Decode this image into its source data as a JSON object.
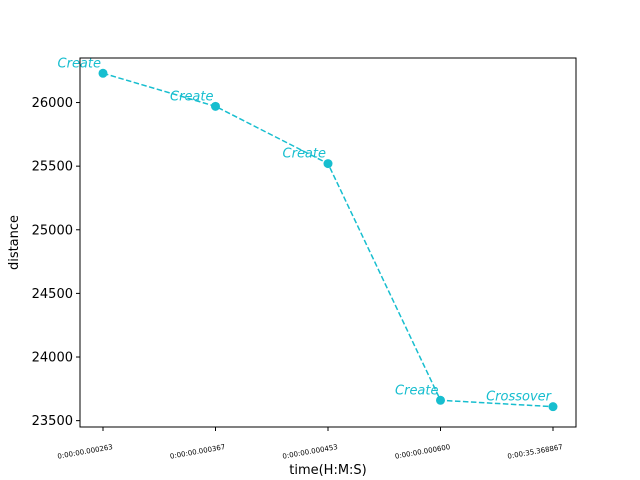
{
  "chart_data": {
    "type": "line",
    "title": "",
    "xlabel": "time(H:M:S)",
    "ylabel": "distance",
    "categories": [
      "0:00:00.000263",
      "0:00:00.000367",
      "0:00:00.000453",
      "0:00:00.000600",
      "0:00:35.368867"
    ],
    "series": [
      {
        "values": [
          26230,
          25970,
          25520,
          23660,
          23610
        ],
        "annotations": [
          "Create",
          "Create",
          "Create",
          "Create",
          "Crossover"
        ],
        "color": "#17becf",
        "line_style": "dashed",
        "marker": "circle"
      }
    ],
    "yticks": [
      23500,
      24000,
      24500,
      25000,
      25500,
      26000
    ],
    "ylim": [
      23450,
      26350
    ],
    "grid": false,
    "legend": "none"
  }
}
